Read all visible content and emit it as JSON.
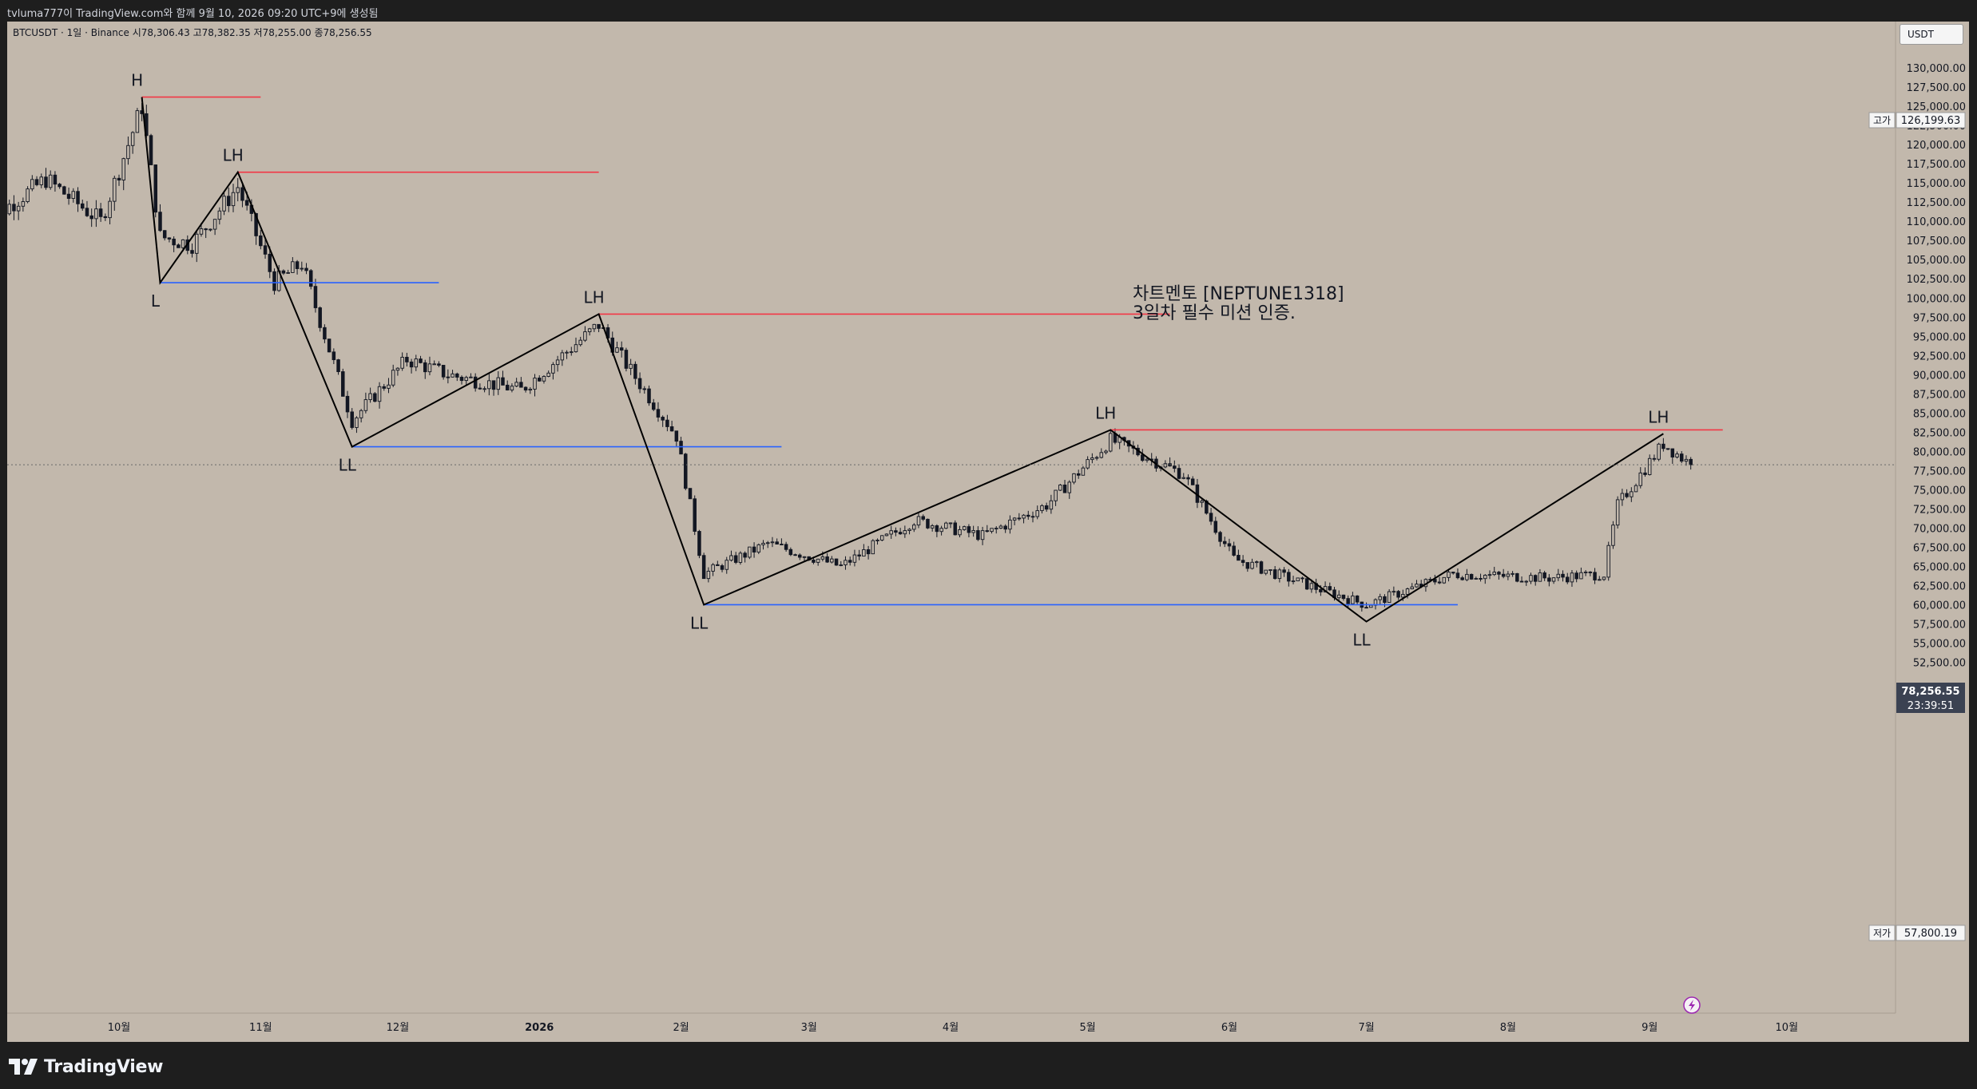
{
  "header": {
    "title": "tvluma777이 TradingView.com와 함께 9월 10, 2026 09:20 UTC+9에 생성됨"
  },
  "symbol_line": "BTCUSDT · 1일 · Binance  시78,306.43  고78,382.35  저78,255.00  종78,256.55",
  "currency_button": "USDT",
  "annotation": {
    "line1": "차트멘토 [NEPTUNE1318]",
    "line2": "3일차 필수 미션 인증."
  },
  "price_axis": {
    "ticks": [
      "130,000.00",
      "127,500.00",
      "125,000.00",
      "122,500.00",
      "120,000.00",
      "117,500.00",
      "115,000.00",
      "112,500.00",
      "110,000.00",
      "107,500.00",
      "105,000.00",
      "102,500.00",
      "100,000.00",
      "97,500.00",
      "95,000.00",
      "92,500.00",
      "90,000.00",
      "87,500.00",
      "85,000.00",
      "82,500.00",
      "80,000.00",
      "77,500.00",
      "75,000.00",
      "72,500.00",
      "70,000.00",
      "67,500.00",
      "65,000.00",
      "62,500.00",
      "60,000.00",
      "57,500.00",
      "55,000.00",
      "52,500.00"
    ],
    "high_label": "고가",
    "high_value": "126,199.63",
    "low_label": "저가",
    "low_value": "57,800.19",
    "last_price": "78,256.55",
    "countdown": "23:39:51"
  },
  "time_axis": {
    "labels": [
      "10월",
      "11월",
      "12월",
      "2026",
      "2월",
      "3월",
      "4월",
      "5월",
      "6월",
      "7월",
      "8월",
      "9월",
      "10월"
    ]
  },
  "chart_data": {
    "type": "candlestick",
    "symbol": "BTCUSDT",
    "interval": "1일",
    "exchange": "Binance",
    "last": {
      "open": 78306.43,
      "high": 78382.35,
      "low": 78255.0,
      "close": 78256.55
    },
    "ylim": [
      51500,
      134000
    ],
    "xlim": [
      "2025-09-01",
      "2026-10-31"
    ],
    "swing_points": [
      {
        "label": "H",
        "date": "2025-10-06",
        "price": 126199.63
      },
      {
        "label": "L",
        "date": "2025-10-10",
        "price": 102000
      },
      {
        "label": "LH",
        "date": "2025-10-27",
        "price": 116400
      },
      {
        "label": "LL",
        "date": "2025-11-21",
        "price": 80600
      },
      {
        "label": "LH",
        "date": "2026-01-14",
        "price": 97900
      },
      {
        "label": "LL",
        "date": "2026-02-06",
        "price": 60000
      },
      {
        "label": "LH",
        "date": "2026-05-06",
        "price": 82800
      },
      {
        "label": "LL",
        "date": "2026-07-01",
        "price": 57800.19
      },
      {
        "label": "LH",
        "date": "2026-09-04",
        "price": 82300
      }
    ],
    "levels": [
      {
        "color": "#f23645",
        "price": 126199.63,
        "from": "2025-10-06",
        "to": "2025-11-01"
      },
      {
        "color": "#f23645",
        "price": 116400,
        "from": "2025-10-27",
        "to": "2026-01-14"
      },
      {
        "color": "#2962ff",
        "price": 102000,
        "from": "2025-10-10",
        "to": "2025-12-10"
      },
      {
        "color": "#f23645",
        "price": 97900,
        "from": "2026-01-14",
        "to": "2026-05-19"
      },
      {
        "color": "#2962ff",
        "price": 80600,
        "from": "2025-11-21",
        "to": "2026-02-23"
      },
      {
        "color": "#f23645",
        "price": 82800,
        "from": "2026-05-06",
        "to": "2026-09-17"
      },
      {
        "color": "#2962ff",
        "price": 60000,
        "from": "2026-02-06",
        "to": "2026-07-21"
      }
    ],
    "colors": {
      "background": "#c2b8ac",
      "candle": "#131722",
      "resistance": "#f23645",
      "support": "#2962ff"
    }
  },
  "footer": {
    "brand": "TradingView"
  }
}
